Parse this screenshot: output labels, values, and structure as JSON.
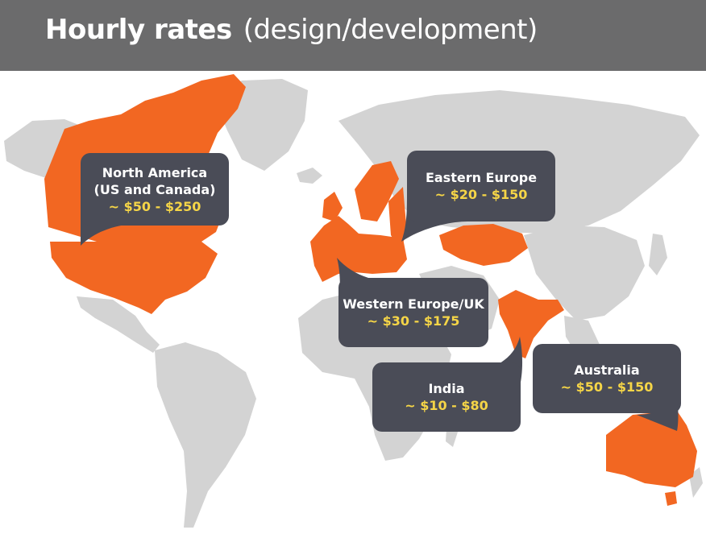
{
  "title": {
    "main": "Hourly rates",
    "sub": "(design/development)"
  },
  "colors": {
    "header": "#6b6b6c",
    "land": "#d3d3d3",
    "highlight": "#f26722",
    "callout": "#4a4c57",
    "rate_text": "#f5d547"
  },
  "regions": [
    {
      "id": "north-america",
      "name_lines": [
        "North America",
        "(US and Canada)"
      ],
      "rate": "~ $50 - $250"
    },
    {
      "id": "eastern-europe",
      "name_lines": [
        "Eastern Europe"
      ],
      "rate": "~ $20 - $150"
    },
    {
      "id": "western-europe",
      "name_lines": [
        "Western Europe/UK"
      ],
      "rate": "~ $30 - $175"
    },
    {
      "id": "india",
      "name_lines": [
        "India"
      ],
      "rate": "~ $10 - $80"
    },
    {
      "id": "australia",
      "name_lines": [
        "Australia"
      ],
      "rate": "~ $50 - $150"
    }
  ]
}
